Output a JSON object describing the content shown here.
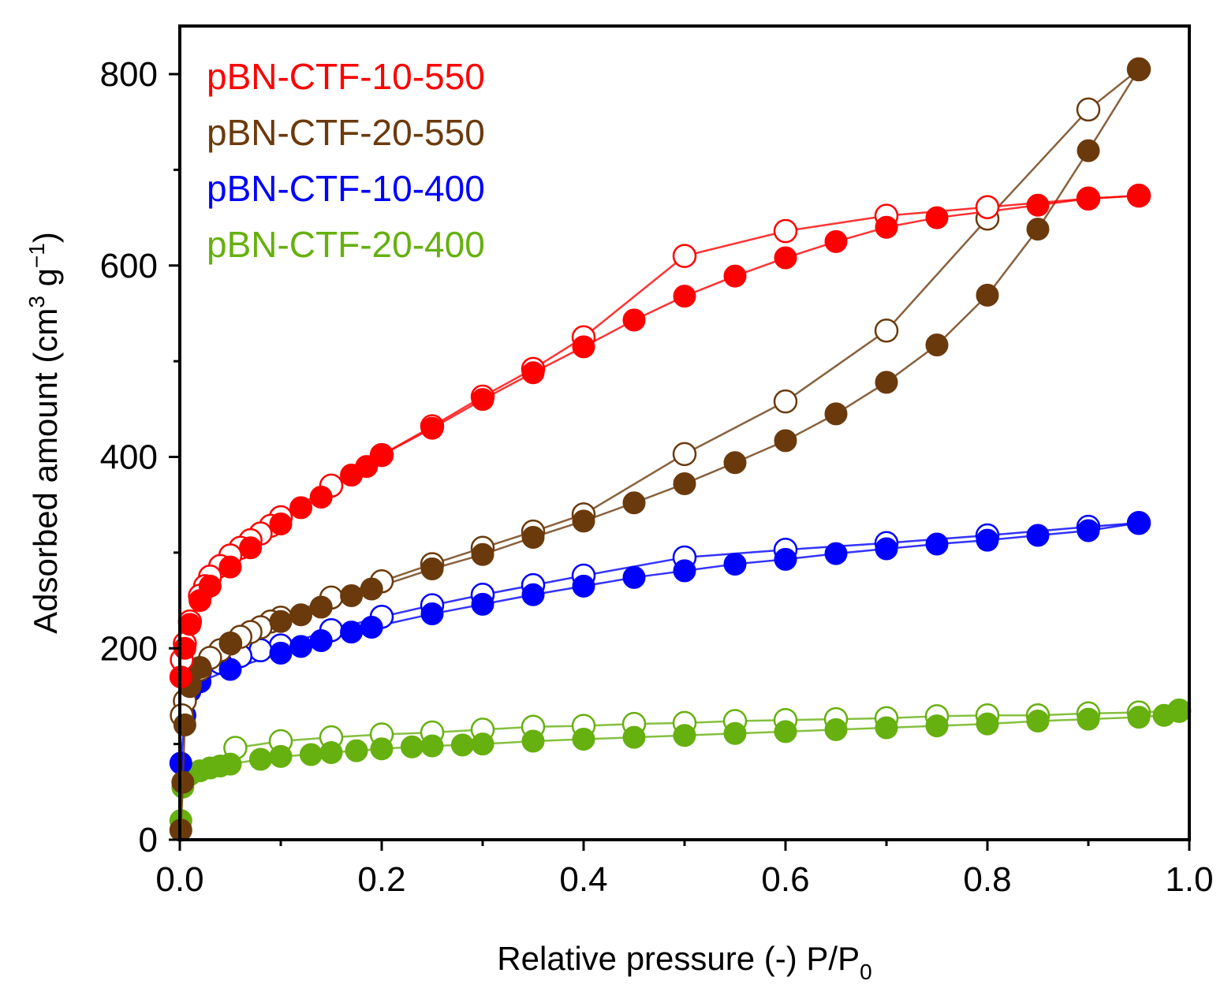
{
  "chart_data": {
    "type": "scatter",
    "title": "",
    "xlabel": "Relative pressure (-) P/P",
    "xlabel_sub": "0",
    "ylabel": "Adsorbed amount (cm",
    "ylabel_sup1": "3",
    "ylabel_mid": " g",
    "ylabel_sup2": "−1",
    "ylabel_end": ")",
    "xlim": [
      0,
      1.0
    ],
    "ylim": [
      0,
      850
    ],
    "xticks": [
      "0.0",
      "0.2",
      "0.4",
      "0.6",
      "0.8",
      "1.0"
    ],
    "xtick_values": [
      0,
      0.2,
      0.4,
      0.6,
      0.8,
      1.0
    ],
    "yticks": [
      "0",
      "200",
      "400",
      "600",
      "800"
    ],
    "ytick_values": [
      0,
      200,
      400,
      600,
      800
    ],
    "grid": false,
    "legend_position": "top-left",
    "series": [
      {
        "name": "pBN-CTF-10-550",
        "color": "#ff0000",
        "adsorption": [
          [
            0.001,
            170
          ],
          [
            0.005,
            200
          ],
          [
            0.01,
            225
          ],
          [
            0.02,
            250
          ],
          [
            0.03,
            265
          ],
          [
            0.05,
            285
          ],
          [
            0.07,
            305
          ],
          [
            0.1,
            330
          ],
          [
            0.12,
            347
          ],
          [
            0.14,
            358
          ],
          [
            0.17,
            381
          ],
          [
            0.185,
            390
          ],
          [
            0.2,
            402
          ],
          [
            0.25,
            430
          ],
          [
            0.3,
            460
          ],
          [
            0.35,
            488
          ],
          [
            0.4,
            515
          ],
          [
            0.45,
            543
          ],
          [
            0.5,
            568
          ],
          [
            0.55,
            589
          ],
          [
            0.6,
            608
          ],
          [
            0.65,
            625
          ],
          [
            0.7,
            640
          ],
          [
            0.75,
            650
          ],
          [
            0.85,
            663
          ],
          [
            0.9,
            670
          ],
          [
            0.95,
            673
          ]
        ],
        "desorption": [
          [
            0.95,
            673
          ],
          [
            0.9,
            670
          ],
          [
            0.8,
            661
          ],
          [
            0.7,
            652
          ],
          [
            0.6,
            636
          ],
          [
            0.5,
            610
          ],
          [
            0.4,
            525
          ],
          [
            0.35,
            492
          ],
          [
            0.3,
            463
          ],
          [
            0.25,
            432
          ],
          [
            0.2,
            402
          ],
          [
            0.15,
            370
          ],
          [
            0.1,
            337
          ],
          [
            0.09,
            328
          ],
          [
            0.08,
            320
          ],
          [
            0.07,
            313
          ],
          [
            0.06,
            305
          ],
          [
            0.05,
            297
          ],
          [
            0.04,
            286
          ],
          [
            0.03,
            275
          ],
          [
            0.025,
            265
          ],
          [
            0.02,
            255
          ],
          [
            0.01,
            228
          ],
          [
            0.005,
            205
          ],
          [
            0.002,
            188
          ]
        ]
      },
      {
        "name": "pBN-CTF-20-550",
        "color": "#6b3a0c",
        "adsorption": [
          [
            0.001,
            10
          ],
          [
            0.003,
            60
          ],
          [
            0.005,
            120
          ],
          [
            0.01,
            160
          ],
          [
            0.02,
            180
          ],
          [
            0.05,
            205
          ],
          [
            0.1,
            228
          ],
          [
            0.12,
            235
          ],
          [
            0.14,
            243
          ],
          [
            0.17,
            255
          ],
          [
            0.19,
            262
          ],
          [
            0.25,
            283
          ],
          [
            0.3,
            298
          ],
          [
            0.35,
            316
          ],
          [
            0.4,
            333
          ],
          [
            0.45,
            352
          ],
          [
            0.5,
            372
          ],
          [
            0.55,
            394
          ],
          [
            0.6,
            417
          ],
          [
            0.65,
            445
          ],
          [
            0.7,
            478
          ],
          [
            0.75,
            517
          ],
          [
            0.8,
            569
          ],
          [
            0.85,
            638
          ],
          [
            0.9,
            720
          ],
          [
            0.95,
            805
          ]
        ],
        "desorption": [
          [
            0.95,
            805
          ],
          [
            0.9,
            763
          ],
          [
            0.8,
            649
          ],
          [
            0.7,
            532
          ],
          [
            0.6,
            458
          ],
          [
            0.5,
            403
          ],
          [
            0.4,
            340
          ],
          [
            0.35,
            322
          ],
          [
            0.3,
            305
          ],
          [
            0.25,
            288
          ],
          [
            0.2,
            270
          ],
          [
            0.15,
            253
          ],
          [
            0.1,
            232
          ],
          [
            0.09,
            228
          ],
          [
            0.08,
            222
          ],
          [
            0.07,
            217
          ],
          [
            0.06,
            212
          ],
          [
            0.05,
            205
          ],
          [
            0.04,
            198
          ],
          [
            0.03,
            190
          ],
          [
            0.02,
            178
          ],
          [
            0.01,
            162
          ],
          [
            0.005,
            145
          ],
          [
            0.002,
            130
          ]
        ]
      },
      {
        "name": "pBN-CTF-10-400",
        "color": "#0000ff",
        "adsorption": [
          [
            0.001,
            80
          ],
          [
            0.005,
            130
          ],
          [
            0.01,
            155
          ],
          [
            0.02,
            165
          ],
          [
            0.05,
            178
          ],
          [
            0.1,
            195
          ],
          [
            0.12,
            202
          ],
          [
            0.14,
            208
          ],
          [
            0.17,
            217
          ],
          [
            0.19,
            222
          ],
          [
            0.25,
            236
          ],
          [
            0.3,
            246
          ],
          [
            0.35,
            256
          ],
          [
            0.4,
            265
          ],
          [
            0.45,
            274
          ],
          [
            0.5,
            281
          ],
          [
            0.55,
            288
          ],
          [
            0.6,
            293
          ],
          [
            0.65,
            299
          ],
          [
            0.7,
            304
          ],
          [
            0.75,
            309
          ],
          [
            0.8,
            313
          ],
          [
            0.85,
            318
          ],
          [
            0.9,
            323
          ],
          [
            0.95,
            331
          ]
        ],
        "desorption": [
          [
            0.95,
            331
          ],
          [
            0.9,
            327
          ],
          [
            0.8,
            318
          ],
          [
            0.7,
            310
          ],
          [
            0.6,
            303
          ],
          [
            0.5,
            295
          ],
          [
            0.4,
            276
          ],
          [
            0.35,
            266
          ],
          [
            0.3,
            256
          ],
          [
            0.25,
            245
          ],
          [
            0.2,
            233
          ],
          [
            0.15,
            219
          ],
          [
            0.1,
            203
          ],
          [
            0.08,
            198
          ],
          [
            0.06,
            192
          ],
          [
            0.04,
            185
          ],
          [
            0.02,
            176
          ],
          [
            0.01,
            165
          ]
        ]
      },
      {
        "name": "pBN-CTF-20-400",
        "color": "#66b00f",
        "adsorption": [
          [
            0.001,
            20
          ],
          [
            0.003,
            55
          ],
          [
            0.01,
            68
          ],
          [
            0.02,
            72
          ],
          [
            0.03,
            75
          ],
          [
            0.04,
            77
          ],
          [
            0.05,
            79
          ],
          [
            0.08,
            84
          ],
          [
            0.1,
            87
          ],
          [
            0.13,
            89
          ],
          [
            0.15,
            91
          ],
          [
            0.175,
            93
          ],
          [
            0.2,
            95
          ],
          [
            0.23,
            97
          ],
          [
            0.25,
            98
          ],
          [
            0.28,
            99
          ],
          [
            0.3,
            100
          ],
          [
            0.35,
            103
          ],
          [
            0.4,
            105
          ],
          [
            0.45,
            107
          ],
          [
            0.5,
            109
          ],
          [
            0.55,
            111
          ],
          [
            0.6,
            113
          ],
          [
            0.65,
            115
          ],
          [
            0.7,
            117
          ],
          [
            0.75,
            119
          ],
          [
            0.8,
            121
          ],
          [
            0.85,
            124
          ],
          [
            0.9,
            126
          ],
          [
            0.95,
            128
          ],
          [
            0.975,
            130
          ],
          [
            0.99,
            134
          ]
        ],
        "desorption": [
          [
            0.99,
            135
          ],
          [
            0.95,
            133
          ],
          [
            0.9,
            132
          ],
          [
            0.85,
            130
          ],
          [
            0.8,
            130
          ],
          [
            0.75,
            129
          ],
          [
            0.7,
            127
          ],
          [
            0.65,
            126
          ],
          [
            0.6,
            125
          ],
          [
            0.55,
            124
          ],
          [
            0.5,
            122
          ],
          [
            0.45,
            121
          ],
          [
            0.4,
            119
          ],
          [
            0.35,
            118
          ],
          [
            0.3,
            115
          ],
          [
            0.25,
            112
          ],
          [
            0.2,
            110
          ],
          [
            0.15,
            107
          ],
          [
            0.1,
            103
          ],
          [
            0.055,
            96
          ]
        ]
      }
    ]
  }
}
